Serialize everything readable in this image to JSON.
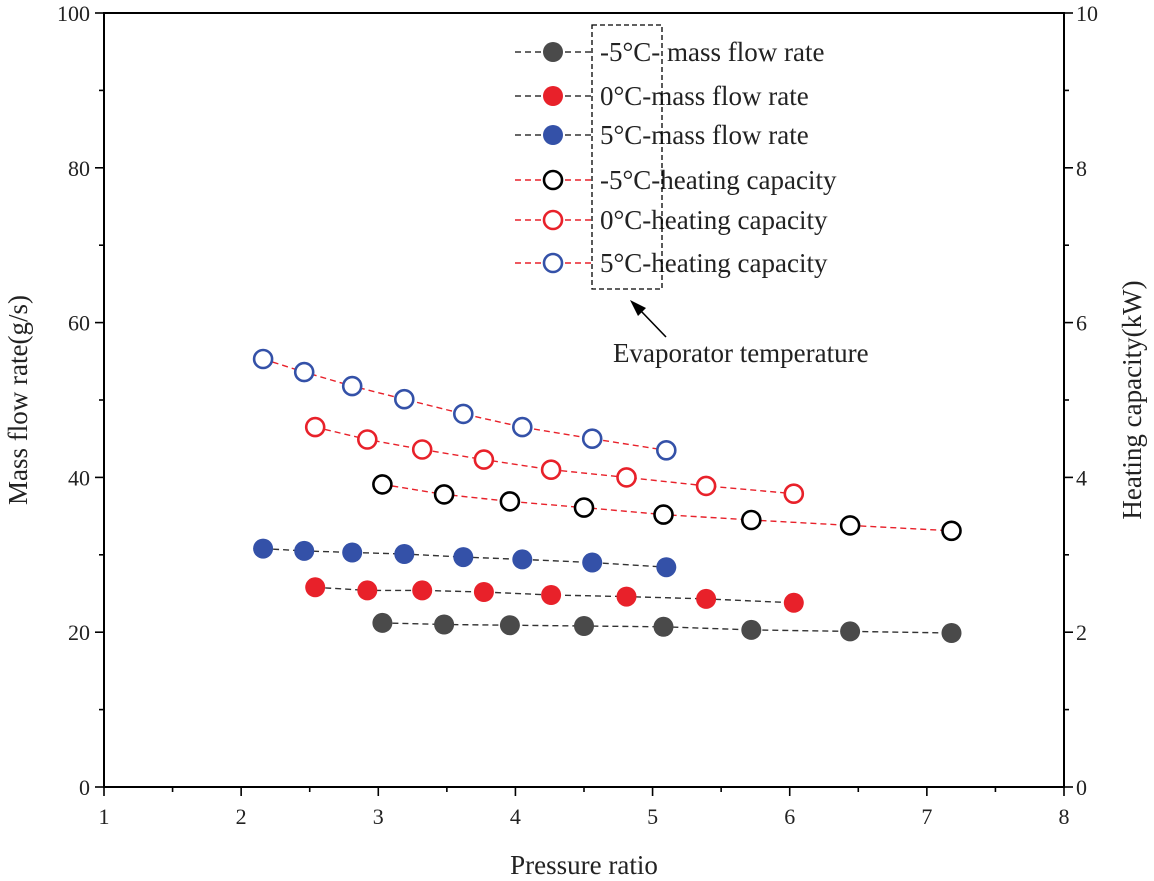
{
  "chart_data": {
    "type": "scatter",
    "xlabel": "Pressure ratio",
    "ylabel_left": "Mass flow rate(g/s)",
    "ylabel_right": "Heating capacity(kW)",
    "xlim": [
      1,
      8
    ],
    "ylim_left": [
      0,
      100
    ],
    "ylim_right": [
      0,
      10
    ],
    "x_ticks": [
      "1",
      "2",
      "3",
      "4",
      "5",
      "6",
      "7",
      "8"
    ],
    "y_ticks_left": [
      "0",
      "20",
      "40",
      "60",
      "80",
      "100"
    ],
    "y_ticks_right": [
      "0",
      "2",
      "4",
      "6",
      "8",
      "10"
    ],
    "grid": false,
    "legend_position": "top-center",
    "annotation": "Evaporator temperature",
    "series": [
      {
        "name": "-5°C- mass flow rate",
        "axis": "left",
        "marker": "filled",
        "color": "#4a4a4a",
        "line_color": "#333333",
        "x": [
          3.03,
          3.48,
          3.96,
          4.5,
          5.08,
          5.72,
          6.44,
          7.18
        ],
        "y": [
          21.2,
          21.0,
          20.9,
          20.8,
          20.7,
          20.3,
          20.1,
          19.9
        ]
      },
      {
        "name": "0°C-mass flow rate",
        "axis": "left",
        "marker": "filled",
        "color": "#e8212a",
        "line_color": "#333333",
        "x": [
          2.54,
          2.92,
          3.32,
          3.77,
          4.26,
          4.81,
          5.39,
          6.03
        ],
        "y": [
          25.8,
          25.4,
          25.4,
          25.2,
          24.8,
          24.6,
          24.3,
          23.8
        ]
      },
      {
        "name": "5°C-mass flow rate",
        "axis": "left",
        "marker": "filled",
        "color": "#3451a8",
        "line_color": "#333333",
        "x": [
          2.16,
          2.46,
          2.81,
          3.19,
          3.62,
          4.05,
          4.56,
          5.1
        ],
        "y": [
          30.8,
          30.5,
          30.3,
          30.1,
          29.7,
          29.4,
          29.0,
          28.4
        ]
      },
      {
        "name": "-5°C-heating capacity",
        "axis": "right",
        "marker": "open",
        "color": "#000000",
        "line_color": "#e8212a",
        "x": [
          3.03,
          3.48,
          3.96,
          4.5,
          5.08,
          5.72,
          6.44,
          7.18
        ],
        "y": [
          3.91,
          3.78,
          3.69,
          3.61,
          3.52,
          3.45,
          3.38,
          3.31
        ]
      },
      {
        "name": "0°C-heating capacity",
        "axis": "right",
        "marker": "open",
        "color": "#e8212a",
        "line_color": "#e8212a",
        "x": [
          2.54,
          2.92,
          3.32,
          3.77,
          4.26,
          4.81,
          5.39,
          6.03
        ],
        "y": [
          4.65,
          4.49,
          4.36,
          4.23,
          4.1,
          4.0,
          3.89,
          3.79
        ]
      },
      {
        "name": "5°C-heating capacity",
        "axis": "right",
        "marker": "open",
        "color": "#3451a8",
        "line_color": "#e8212a",
        "x": [
          2.16,
          2.46,
          2.81,
          3.19,
          3.62,
          4.05,
          4.56,
          5.1
        ],
        "y": [
          5.53,
          5.36,
          5.18,
          5.01,
          4.82,
          4.65,
          4.5,
          4.35
        ]
      }
    ]
  }
}
